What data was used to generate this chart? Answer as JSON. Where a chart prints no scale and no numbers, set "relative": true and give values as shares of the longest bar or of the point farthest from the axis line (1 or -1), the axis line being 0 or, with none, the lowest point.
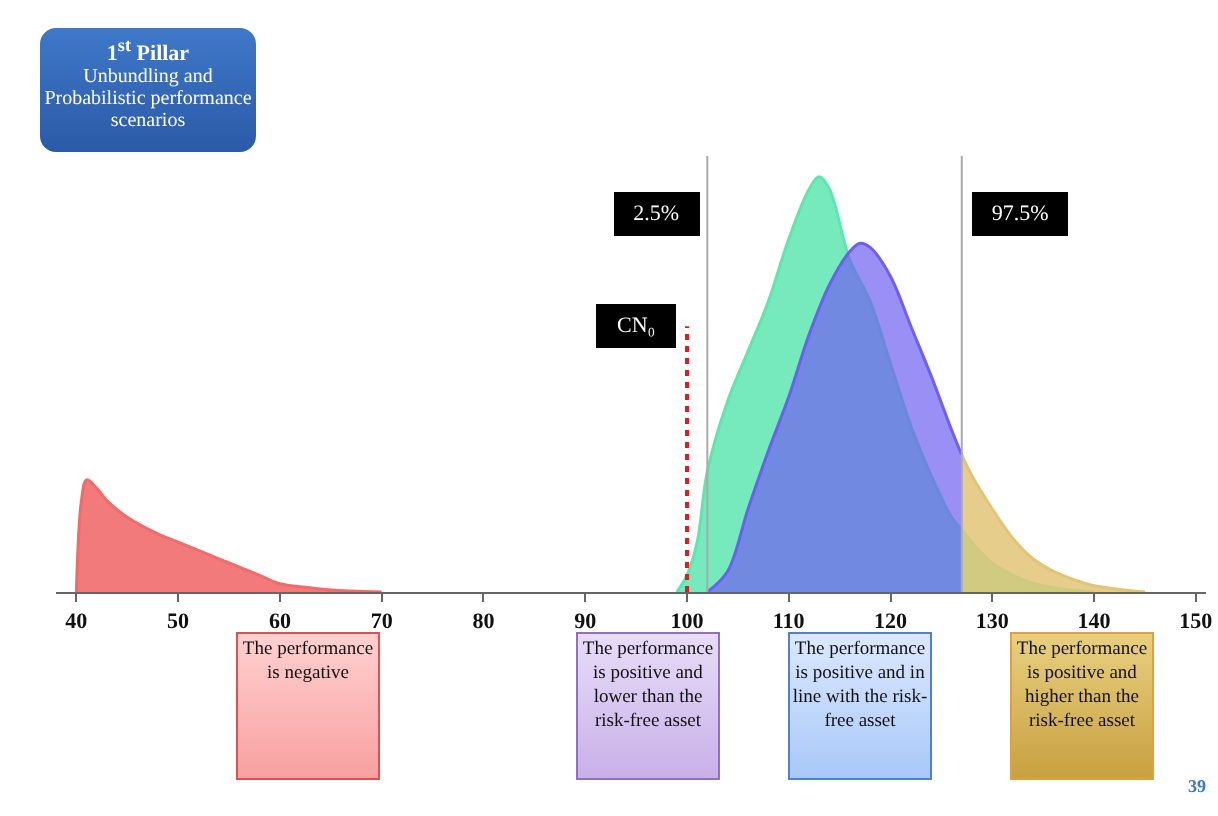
{
  "chart_data": {
    "type": "area",
    "title": "1$^{st}$ Pillar",
    "subtitle": "Unbundling and Probabilistic performance scenarios",
    "relative": true,
    "grid": false,
    "tick_labels": "x",
    "xlim": [
      38,
      151
    ],
    "xticks": [
      40,
      50,
      60,
      70,
      80,
      90,
      100,
      110,
      120,
      130,
      140,
      150
    ],
    "series": [
      {
        "color": "#f26b6b",
        "x": [
          40,
          40.5,
          41,
          42,
          43,
          45,
          48,
          50,
          53,
          55,
          58,
          60,
          63,
          65,
          70
        ],
        "values": [
          0,
          0.22,
          0.27,
          0.25,
          0.22,
          0.18,
          0.14,
          0.12,
          0.09,
          0.07,
          0.04,
          0.02,
          0.01,
          0.005,
          0
        ]
      },
      {
        "color": "#5ee6b0",
        "x": [
          99,
          100,
          101,
          102,
          104,
          106,
          108,
          110,
          112,
          113,
          114,
          116,
          118,
          120,
          122,
          124,
          126,
          127,
          128,
          130,
          133,
          136,
          140
        ],
        "values": [
          0,
          0.04,
          0.12,
          0.29,
          0.46,
          0.58,
          0.7,
          0.85,
          0.97,
          1,
          0.97,
          0.8,
          0.7,
          0.55,
          0.4,
          0.28,
          0.18,
          0.15,
          0.12,
          0.07,
          0.03,
          0.01,
          0
        ]
      },
      {
        "color": "#6f5ff0",
        "x": [
          102,
          104,
          106,
          108,
          110,
          112,
          114,
          116,
          117,
          118,
          120,
          122,
          124,
          126,
          127
        ],
        "values": [
          0,
          0.05,
          0.2,
          0.34,
          0.47,
          0.62,
          0.74,
          0.82,
          0.84,
          0.83,
          0.76,
          0.64,
          0.52,
          0.39,
          0.33
        ]
      },
      {
        "color": "#e2c477",
        "x": [
          127,
          128,
          130,
          132,
          134,
          136,
          138,
          140,
          143,
          145
        ],
        "values": [
          0.33,
          0.28,
          0.2,
          0.13,
          0.08,
          0.05,
          0.03,
          0.015,
          0.005,
          0
        ]
      }
    ],
    "ref_lines": [
      {
        "axis": "x",
        "value": 100,
        "color": "#d62020",
        "line_style": "dotted"
      },
      {
        "axis": "x",
        "value": 102,
        "color": "#aaaaaa",
        "line_style": "solid"
      },
      {
        "axis": "x",
        "value": 127,
        "color": "#aaaaaa",
        "line_style": "solid"
      }
    ],
    "annotations": [
      "CN₀",
      "2.5%",
      "97.5%",
      "The performance is negative",
      "The performance is positive and lower than the risk-free asset",
      "The performance is positive and in line with the risk-free asset",
      "The performance is positive and higher than the risk-free asset",
      "39"
    ]
  }
}
